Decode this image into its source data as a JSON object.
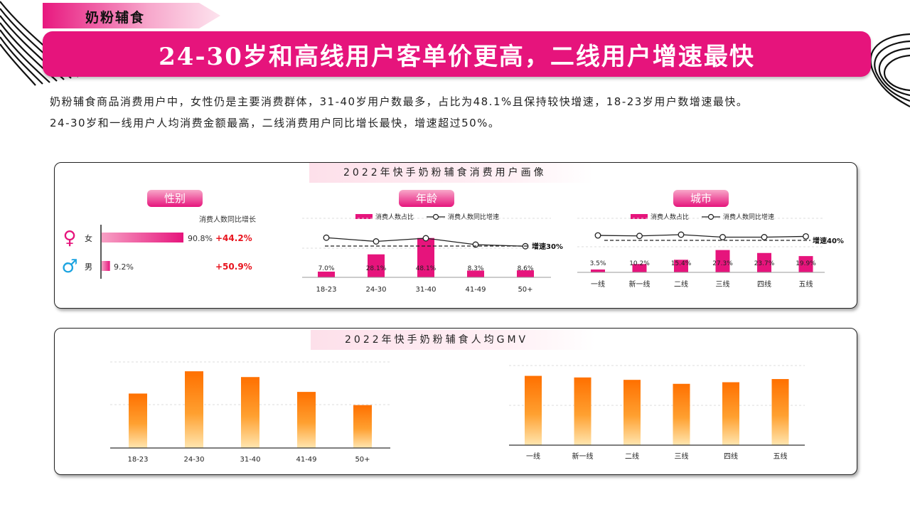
{
  "section_tag": "奶粉辅食",
  "banner_title": "24-30岁和高线用户客单价更高，二线用户增速最快",
  "description": [
    "奶粉辅食商品消费用户中，女性仍是主要消费群体，31-40岁用户数最多，占比为48.1%且保持较快增速，18-23岁用户数增速最快。",
    "24-30岁和一线用户人均消费金额最高，二线消费用户同比增长最快，增速超过50%。"
  ],
  "colors": {
    "accent": "#e6147c",
    "orange": "#ff7a00",
    "growth_red": "#e8141e",
    "male_blue": "#1aa3e0"
  },
  "card1": {
    "title": "2022年快手奶粉辅食消费用户画像",
    "gender_pill": "性别",
    "age_pill": "年龄",
    "city_pill": "城市",
    "legend_bar": "消费人数占比",
    "legend_line": "消费人数同比增速"
  },
  "card2": {
    "title": "2022年快手奶粉辅食人均GMV"
  },
  "chart_data": [
    {
      "type": "bar",
      "name": "gender",
      "header": "消费人数同比增长",
      "categories": [
        "女",
        "男"
      ],
      "icons": [
        "female-icon",
        "male-icon"
      ],
      "values": [
        90.8,
        9.2
      ],
      "labels": [
        "90.8%",
        "9.2%"
      ],
      "growth_labels": [
        "+44.2%",
        "+50.9%"
      ]
    },
    {
      "type": "bar",
      "name": "age",
      "categories": [
        "18-23",
        "24-30",
        "31-40",
        "41-49",
        "50+"
      ],
      "values": [
        7.0,
        28.1,
        48.1,
        8.3,
        8.6
      ],
      "labels": [
        "7.0%",
        "28.1%",
        "48.1%",
        "8.3%",
        "8.6%"
      ],
      "growth_index": [
        0.85,
        0.5,
        0.8,
        0.2,
        0.05
      ],
      "reference_label": "增速30%"
    },
    {
      "type": "bar",
      "name": "city",
      "categories": [
        "一线",
        "新一线",
        "二线",
        "三线",
        "四线",
        "五线"
      ],
      "values": [
        3.5,
        10.2,
        15.4,
        27.3,
        23.7,
        19.9
      ],
      "labels": [
        "3.5%",
        "10.2%",
        "15.4%",
        "27.3%",
        "23.7%",
        "19.9%"
      ],
      "growth_index": [
        0.85,
        0.75,
        1.0,
        0.5,
        0.5,
        0.65
      ],
      "reference_label": "增速40%"
    },
    {
      "type": "bar",
      "name": "gmv_age",
      "categories": [
        "18-23",
        "24-30",
        "31-40",
        "41-49",
        "50+"
      ],
      "values": [
        0.66,
        0.93,
        0.86,
        0.68,
        0.52
      ],
      "grid_lines": 2
    },
    {
      "type": "bar",
      "name": "gmv_city",
      "categories": [
        "一线",
        "新一线",
        "二线",
        "三线",
        "四线",
        "五线"
      ],
      "values": [
        0.87,
        0.85,
        0.82,
        0.77,
        0.79,
        0.83
      ],
      "grid_lines": 2
    }
  ]
}
